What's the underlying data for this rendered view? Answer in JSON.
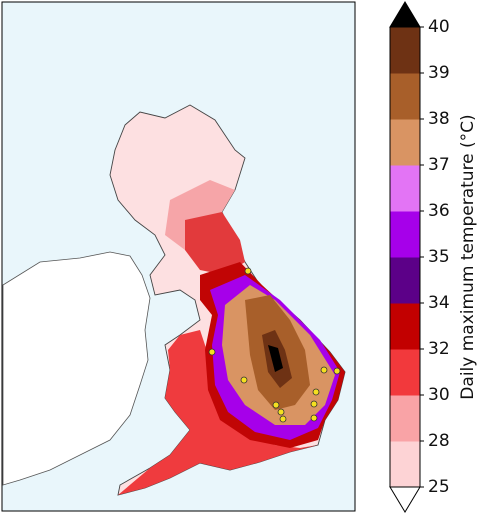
{
  "colorbar": {
    "label": "Daily maximum temperature (°C)",
    "ticks": [
      25,
      28,
      30,
      32,
      34,
      35,
      36,
      37,
      38,
      39,
      40
    ],
    "colors": [
      "#fdd3d5",
      "#f9a3a6",
      "#f2393c",
      "#c20000",
      "#5c0088",
      "#a600ea",
      "#e374f5",
      "#d99463",
      "#a85f2a",
      "#6e3214"
    ],
    "over_color": "#000000",
    "under_color": "#ffffff"
  }
}
